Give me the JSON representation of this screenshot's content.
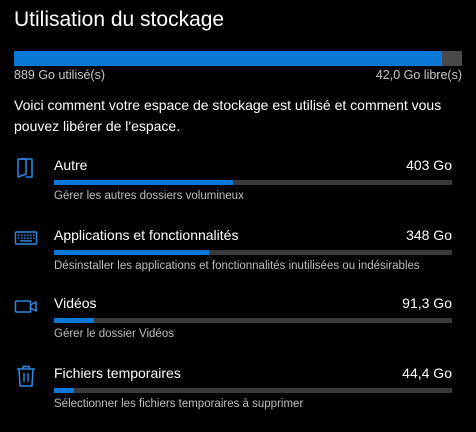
{
  "title": "Utilisation du stockage",
  "storage": {
    "used_label": "889 Go utilisé(s)",
    "free_label": "42,0 Go libre(s)",
    "used_fraction": 0.955
  },
  "description": "Voici comment votre espace de stockage est utilisé et comment vous pouvez libérer de l'espace.",
  "colors": {
    "accent": "#0a78d7",
    "track": "#3a3a3a",
    "main_track": "#4a4a4a",
    "background": "#000000"
  },
  "categories": [
    {
      "icon": "folder-icon",
      "name": "Autre",
      "size": "403 Go",
      "subtitle": "Gérer les autres dossiers volumineux",
      "fill_fraction": 0.45
    },
    {
      "icon": "keyboard-icon",
      "name": "Applications et fonctionnalités",
      "size": "348 Go",
      "subtitle": "Désinstaller les applications et fonctionnalités inutilisées ou indésirables",
      "fill_fraction": 0.39
    },
    {
      "icon": "video-icon",
      "name": "Vidéos",
      "size": "91,3 Go",
      "subtitle": "Gérer le dossier Vidéos",
      "fill_fraction": 0.1
    },
    {
      "icon": "trash-icon",
      "name": "Fichiers temporaires",
      "size": "44,4 Go",
      "subtitle": "Sélectionner les fichiers temporaires à supprimer",
      "fill_fraction": 0.05
    }
  ]
}
